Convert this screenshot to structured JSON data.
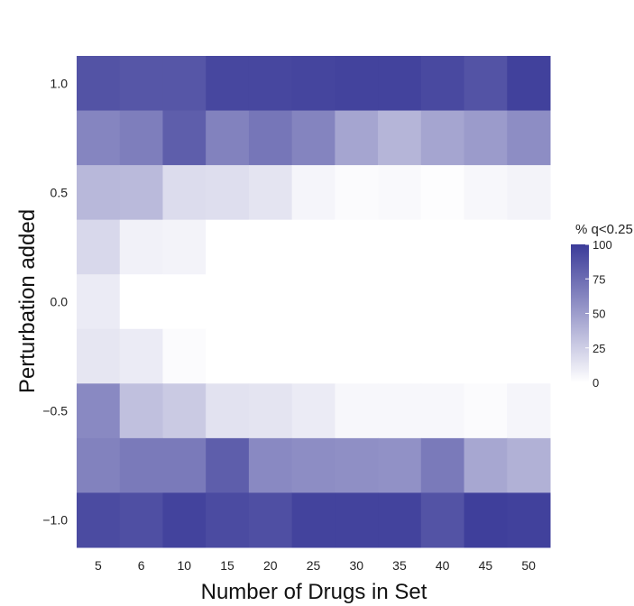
{
  "chart_data": {
    "type": "heatmap",
    "xlabel": "Number of Drugs in Set",
    "ylabel": "Perturbation added",
    "x_categories": [
      "5",
      "6",
      "10",
      "15",
      "20",
      "25",
      "30",
      "35",
      "40",
      "45",
      "50"
    ],
    "y_categories": [
      "1.0",
      "0.75",
      "0.5",
      "0.25",
      "0.0",
      "-0.25",
      "-0.5",
      "-0.75",
      "-1.0"
    ],
    "y_tick_labels": [
      "1.0",
      "0.5",
      "0.0",
      "−0.5",
      "−1.0"
    ],
    "y_tick_rows": [
      0,
      2,
      4,
      6,
      8
    ],
    "values": [
      [
        88,
        86,
        86,
        94,
        94,
        95,
        96,
        96,
        93,
        88,
        97
      ],
      [
        62,
        66,
        82,
        64,
        70,
        63,
        46,
        38,
        46,
        51,
        58
      ],
      [
        36,
        35,
        18,
        17,
        14,
        5,
        2,
        3,
        1,
        4,
        6
      ],
      [
        20,
        7,
        6,
        0,
        0,
        0,
        0,
        0,
        0,
        0,
        0
      ],
      [
        10,
        0,
        0,
        0,
        0,
        0,
        0,
        0,
        0,
        0,
        0
      ],
      [
        13,
        10,
        2,
        0,
        0,
        0,
        0,
        0,
        0,
        0,
        0
      ],
      [
        60,
        32,
        27,
        15,
        14,
        10,
        4,
        4,
        4,
        2,
        5
      ],
      [
        64,
        68,
        68,
        82,
        60,
        58,
        57,
        56,
        68,
        45,
        40
      ],
      [
        92,
        90,
        96,
        92,
        90,
        96,
        96,
        96,
        88,
        98,
        97
      ]
    ],
    "colorbar": {
      "title": "% q<0.25",
      "ticks": [
        0,
        25,
        50,
        75,
        100
      ],
      "min": 0,
      "max": 100,
      "low_color": "#ffffff",
      "high_color": "#3b3b99"
    }
  }
}
